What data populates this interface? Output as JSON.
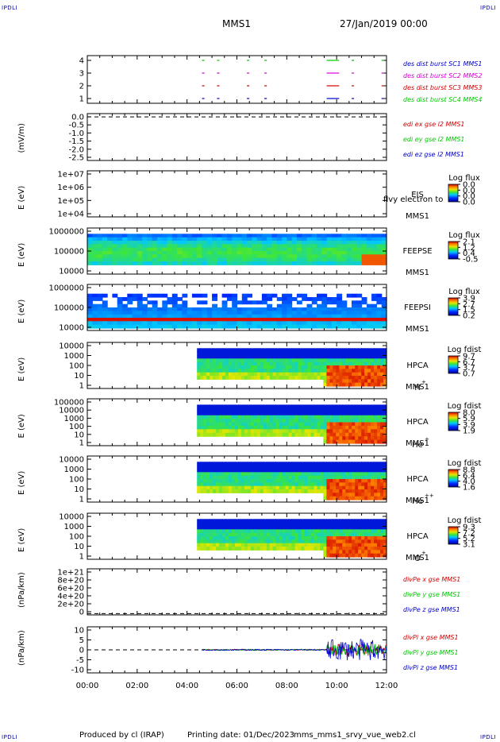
{
  "header": {
    "spacecraft": "MMS1",
    "date": "27/Jan/2019 00:00",
    "corner_tl": "IPDLI",
    "corner_tr": "IPDLI",
    "corner_bl": "IPDLI",
    "corner_br": "IPDLI"
  },
  "footer": {
    "produced": "Produced by cl (IRAP)",
    "printing": "Printing date: 01/Dec/2023",
    "filename": "mms_mms1_srvy_vue_web2.cl"
  },
  "colors": {
    "red": "#d40000",
    "green": "#00c800",
    "blue": "#0000cc",
    "magenta": "#d400d4",
    "black": "#000000"
  },
  "chart_data": {
    "type": "multi-panel time series",
    "x": {
      "ticks": [
        "00:00",
        "02:00",
        "04:00",
        "06:00",
        "08:00",
        "10:00",
        "12:00"
      ],
      "range_hours": [
        0,
        12
      ]
    },
    "panels": [
      {
        "id": "burst",
        "type": "line",
        "yticks": [
          "1",
          "2",
          "3",
          "4"
        ],
        "ylim": [
          0.5,
          4.5
        ],
        "legend": [
          {
            "text": "des dist burst SC1 MMS1",
            "color": "blue"
          },
          {
            "text": "des dist burst SC2 MMS2",
            "color": "magenta"
          },
          {
            "text": "des dist burst SC3 MMS3",
            "color": "red"
          },
          {
            "text": "des dist burst SC4 MMS4",
            "color": "green"
          }
        ],
        "bursts_hours": [
          [
            4.6,
            4.7
          ],
          [
            5.2,
            5.3
          ],
          [
            6.4,
            6.5
          ],
          [
            7.1,
            7.2
          ],
          [
            9.6,
            10.1
          ],
          [
            10.6,
            10.7
          ],
          [
            11.8,
            11.9
          ]
        ]
      },
      {
        "id": "edi",
        "type": "line",
        "ylabel": "(mV/m)",
        "yticks": [
          "0.0",
          "-0.5",
          "-1.0",
          "-1.5",
          "-2.0",
          "-2.5"
        ],
        "ylim": [
          -2.7,
          0.2
        ],
        "legend": [
          {
            "text": "edi ex gse l2 MMS1",
            "color": "red"
          },
          {
            "text": "edi ey gse l2 MMS1",
            "color": "green"
          },
          {
            "text": "edi ez gse l2 MMS1",
            "color": "blue"
          }
        ],
        "dashed_level": 0
      },
      {
        "id": "eis",
        "type": "heatmap",
        "ylabel": "E (eV)",
        "yticks": [
          "1e+07",
          "1e+06",
          "1e+05",
          "1e+04"
        ],
        "labels": [
          "EIS",
          "MMS1"
        ],
        "overlay": "flvy electron to",
        "cbar": {
          "title": "Log flux",
          "ticks": [
            "0.0",
            "0.0",
            "0.0",
            "0.0"
          ]
        },
        "coverage_hours": []
      },
      {
        "id": "feepse",
        "type": "heatmap",
        "ylabel": "E (eV)",
        "yticks": [
          "1000000",
          "100000",
          "10000"
        ],
        "labels": [
          "FEEPSE",
          "MMS1"
        ],
        "cbar": {
          "title": "Log flux",
          "ticks": [
            "2.1",
            "1.2",
            "0.4",
            "-0.5"
          ]
        },
        "coverage_hours": [
          0,
          12
        ]
      },
      {
        "id": "feepsi",
        "type": "heatmap",
        "ylabel": "E (eV)",
        "yticks": [
          "1000000",
          "100000",
          "10000"
        ],
        "labels": [
          "FEEPSI",
          "MMS1"
        ],
        "cbar": {
          "title": "Log flux",
          "ticks": [
            "3.9",
            "2.7",
            "1.5",
            "0.2"
          ]
        },
        "coverage_hours": [
          0,
          12
        ]
      },
      {
        "id": "hpca_h",
        "type": "heatmap",
        "ylabel": "E (eV)",
        "yticks": [
          "10000",
          "1000",
          "100",
          "10",
          "1"
        ],
        "labels": [
          "HPCA",
          "MMS1"
        ],
        "species": "H",
        "species_sup": "+",
        "cbar": {
          "title": "Log fdist",
          "ticks": [
            "9.7",
            "6.7",
            "3.7",
            "0.7"
          ]
        },
        "coverage_hours": [
          4.4,
          12
        ]
      },
      {
        "id": "hpca_he",
        "type": "heatmap",
        "ylabel": "E (eV)",
        "yticks": [
          "100000",
          "10000",
          "1000",
          "100",
          "10",
          "1"
        ],
        "labels": [
          "HPCA",
          "MMS1"
        ],
        "species": "He",
        "species_sup": "+",
        "cbar": {
          "title": "Log fdist",
          "ticks": [
            "8.0",
            "5.9",
            "3.9",
            "1.9"
          ]
        },
        "coverage_hours": [
          4.4,
          12
        ]
      },
      {
        "id": "hpca_hepp",
        "type": "heatmap",
        "ylabel": "E (eV)",
        "yticks": [
          "10000",
          "1000",
          "100",
          "10",
          "1"
        ],
        "labels": [
          "HPCA",
          "MMS1"
        ],
        "species": "He",
        "species_sup": "++",
        "cbar": {
          "title": "Log fdist",
          "ticks": [
            "8.8",
            "6.4",
            "4.0",
            "1.6"
          ]
        },
        "coverage_hours": [
          4.4,
          12
        ]
      },
      {
        "id": "hpca_o",
        "type": "heatmap",
        "ylabel": "E (eV)",
        "yticks": [
          "10000",
          "1000",
          "100",
          "10",
          "1"
        ],
        "labels": [
          "HPCA",
          "MMS1"
        ],
        "species": "O",
        "species_sup": "+",
        "cbar": {
          "title": "Log fdist",
          "ticks": [
            "9.3",
            "7.2",
            "5.2",
            "3.1"
          ]
        },
        "coverage_hours": [
          4.4,
          12
        ]
      },
      {
        "id": "divpe",
        "type": "line",
        "ylabel": "(nPa/km)",
        "yticks": [
          "1e+21",
          "8e+20",
          "6e+20",
          "4e+20",
          "2e+20",
          "0"
        ],
        "ylim": [
          -3e+19,
          1.05e+21
        ],
        "legend": [
          {
            "text": "divPe x gse MMS1",
            "color": "red"
          },
          {
            "text": "divPe y gse MMS1",
            "color": "green"
          },
          {
            "text": "divPe z gse MMS1",
            "color": "blue"
          }
        ],
        "dashed_level": 0
      },
      {
        "id": "divpi",
        "type": "line",
        "ylabel": "(nPa/km)",
        "yticks": [
          "10",
          "5",
          "0",
          "-5",
          "-10"
        ],
        "ylim": [
          -14,
          14
        ],
        "legend": [
          {
            "text": "divPi x gse MMS1",
            "color": "red"
          },
          {
            "text": "divPi y gse MMS1",
            "color": "green"
          },
          {
            "text": "divPi z gse MMS1",
            "color": "blue"
          }
        ],
        "dashed_level": 0,
        "data_start_hours": 4.6
      }
    ]
  }
}
